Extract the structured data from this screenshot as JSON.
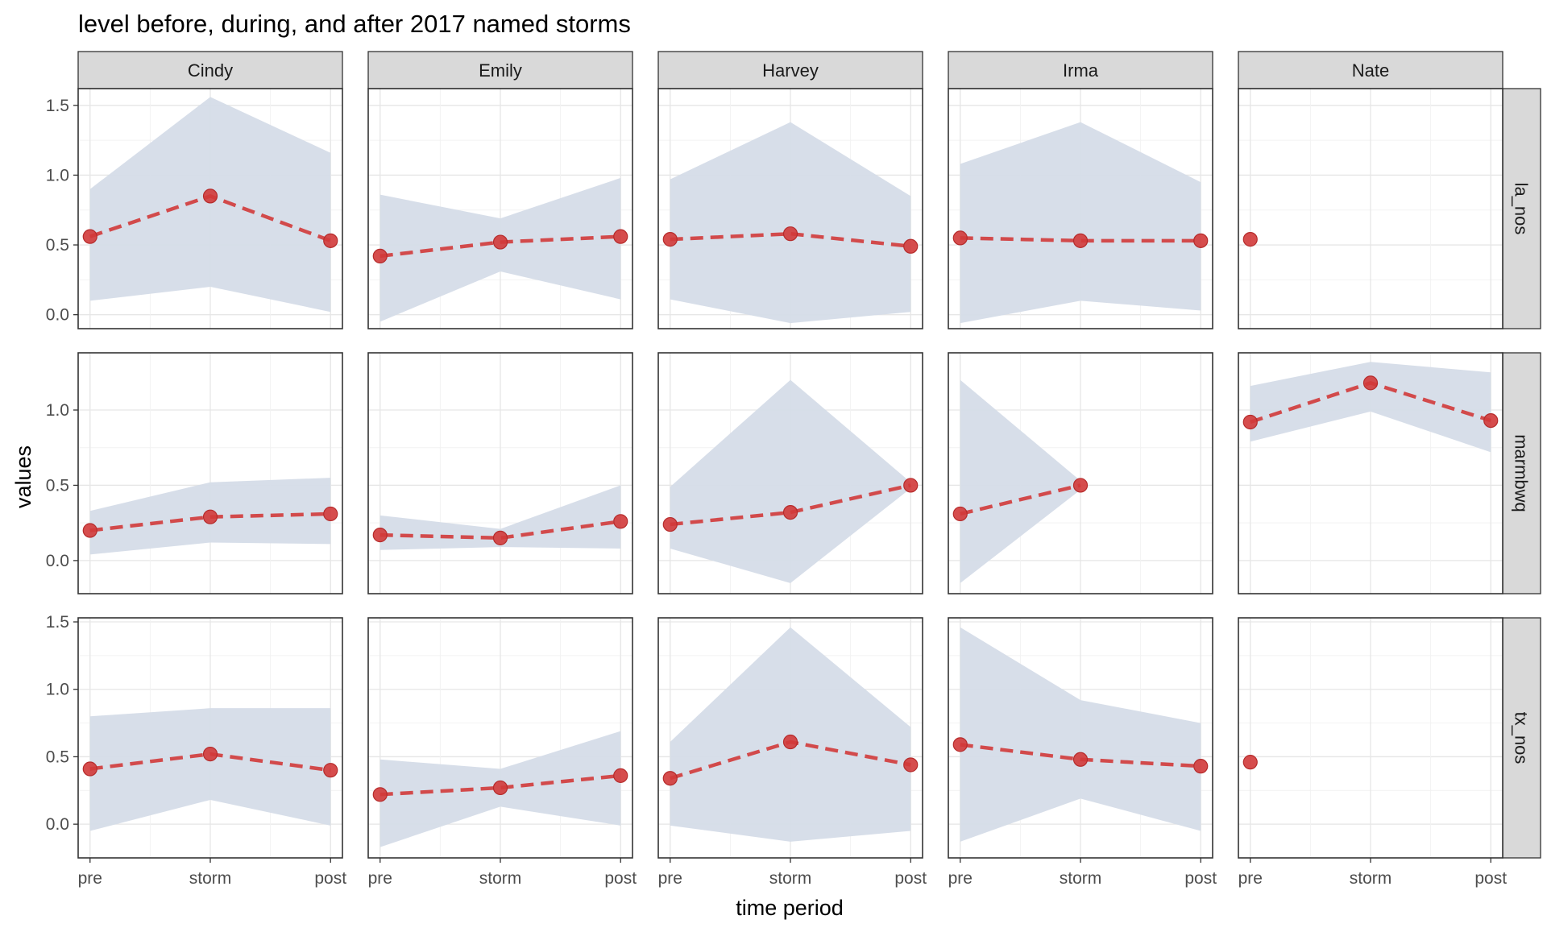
{
  "chart_data": {
    "type": "line",
    "title": "level before, during, and after 2017 named storms",
    "xlabel": "time period",
    "ylabel": "values",
    "categories": [
      "pre",
      "storm",
      "post"
    ],
    "facet_columns": [
      "Cindy",
      "Emily",
      "Harvey",
      "Irma",
      "Nate"
    ],
    "facet_rows": [
      "la_nos",
      "marmbwq",
      "tx_nos"
    ],
    "row_ylim": [
      [
        -0.1,
        1.62
      ],
      [
        -0.22,
        1.38
      ],
      [
        -0.25,
        1.53
      ]
    ],
    "row_yticks": [
      [
        "0.0",
        "0.5",
        "1.0",
        "1.5"
      ],
      [
        "0.0",
        "0.5",
        "1.0"
      ],
      [
        "0.0",
        "0.5",
        "1.0",
        "1.5"
      ]
    ],
    "grid": true,
    "legend": "none",
    "colors": {
      "line": "#d23a3a",
      "ribbon": "#d5dce8",
      "strip": "#d9d9d9"
    },
    "panels": [
      {
        "row": "la_nos",
        "col": "Cindy",
        "values": [
          0.56,
          0.85,
          0.53
        ],
        "lower": [
          0.1,
          0.2,
          0.02
        ],
        "upper": [
          0.9,
          1.56,
          1.16
        ]
      },
      {
        "row": "la_nos",
        "col": "Emily",
        "values": [
          0.42,
          0.52,
          0.56
        ],
        "lower": [
          -0.05,
          0.31,
          0.11
        ],
        "upper": [
          0.86,
          0.69,
          0.98
        ]
      },
      {
        "row": "la_nos",
        "col": "Harvey",
        "values": [
          0.54,
          0.58,
          0.49
        ],
        "lower": [
          0.11,
          -0.06,
          0.02
        ],
        "upper": [
          0.97,
          1.38,
          0.85
        ]
      },
      {
        "row": "la_nos",
        "col": "Irma",
        "values": [
          0.55,
          0.53,
          0.53
        ],
        "lower": [
          -0.06,
          0.1,
          0.03
        ],
        "upper": [
          1.08,
          1.38,
          0.95
        ]
      },
      {
        "row": "la_nos",
        "col": "Nate",
        "values": [
          0.54,
          null,
          null
        ],
        "lower": [
          null,
          null,
          null
        ],
        "upper": [
          null,
          null,
          null
        ]
      },
      {
        "row": "marmbwq",
        "col": "Cindy",
        "values": [
          0.2,
          0.29,
          0.31
        ],
        "lower": [
          0.04,
          0.12,
          0.11
        ],
        "upper": [
          0.33,
          0.52,
          0.55
        ]
      },
      {
        "row": "marmbwq",
        "col": "Emily",
        "values": [
          0.17,
          0.15,
          0.26
        ],
        "lower": [
          0.07,
          0.09,
          0.08
        ],
        "upper": [
          0.3,
          0.21,
          0.5
        ]
      },
      {
        "row": "marmbwq",
        "col": "Harvey",
        "values": [
          0.24,
          0.32,
          0.5
        ],
        "lower": [
          0.08,
          -0.15,
          0.48
        ],
        "upper": [
          0.49,
          1.2,
          0.52
        ]
      },
      {
        "row": "marmbwq",
        "col": "Irma",
        "values": [
          0.31,
          0.5,
          null
        ],
        "lower": [
          -0.15,
          0.47,
          null
        ],
        "upper": [
          1.2,
          0.53,
          null
        ]
      },
      {
        "row": "marmbwq",
        "col": "Nate",
        "values": [
          0.92,
          1.18,
          0.93
        ],
        "lower": [
          0.79,
          0.99,
          0.72
        ],
        "upper": [
          1.16,
          1.32,
          1.25
        ]
      },
      {
        "row": "tx_nos",
        "col": "Cindy",
        "values": [
          0.41,
          0.52,
          0.4
        ],
        "lower": [
          -0.05,
          0.18,
          -0.01
        ],
        "upper": [
          0.8,
          0.86,
          0.86
        ]
      },
      {
        "row": "tx_nos",
        "col": "Emily",
        "values": [
          0.22,
          0.27,
          0.36
        ],
        "lower": [
          -0.17,
          0.13,
          -0.01
        ],
        "upper": [
          0.48,
          0.41,
          0.69
        ]
      },
      {
        "row": "tx_nos",
        "col": "Harvey",
        "values": [
          0.34,
          0.61,
          0.44
        ],
        "lower": [
          -0.01,
          -0.13,
          -0.05
        ],
        "upper": [
          0.61,
          1.46,
          0.72
        ]
      },
      {
        "row": "tx_nos",
        "col": "Irma",
        "values": [
          0.59,
          0.48,
          0.43
        ],
        "lower": [
          -0.13,
          0.19,
          -0.05
        ],
        "upper": [
          1.46,
          0.92,
          0.75
        ]
      },
      {
        "row": "tx_nos",
        "col": "Nate",
        "values": [
          0.46,
          null,
          null
        ],
        "lower": [
          null,
          null,
          null
        ],
        "upper": [
          null,
          null,
          null
        ]
      }
    ]
  }
}
